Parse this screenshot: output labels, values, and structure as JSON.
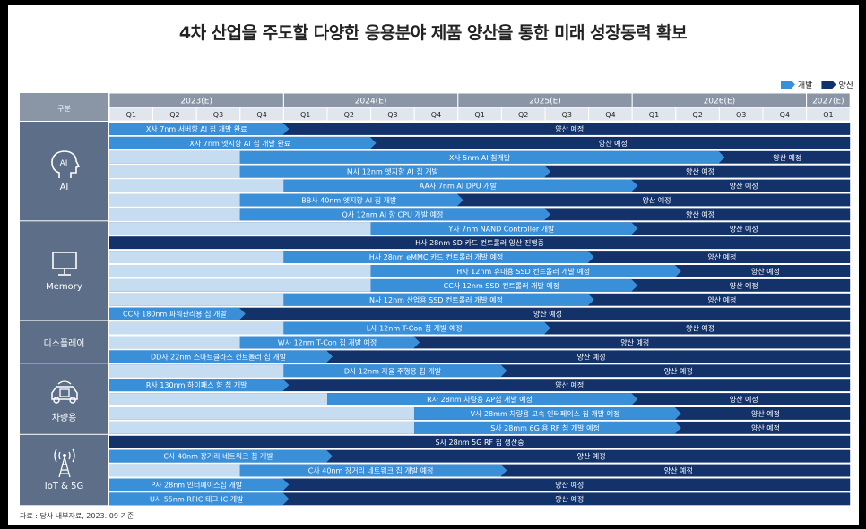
{
  "title": "4차 산업을 주도할 다양한 응용분야 제품 양산을 통한 미래 성장동력 확보",
  "legend": [
    {
      "label": "개발",
      "color": "#3a8fd9"
    },
    {
      "label": "양산",
      "color": "#13326a"
    }
  ],
  "source": "자료 : 당사 내부자료, 2023. 09 기준",
  "header": {
    "category_col": "구분",
    "years": [
      "2023(E)",
      "2024(E)",
      "2025(E)",
      "2026(E)",
      "2027(E)"
    ],
    "quarters": [
      "Q1",
      "Q2",
      "Q3",
      "Q4",
      "Q1",
      "Q2",
      "Q3",
      "Q4",
      "Q1",
      "Q2",
      "Q3",
      "Q4",
      "Q1",
      "Q2",
      "Q3",
      "Q4",
      "Q1"
    ]
  },
  "categories": [
    {
      "label": "AI",
      "icon": "ai-head-icon"
    },
    {
      "label": "Memory",
      "icon": "monitor-icon"
    },
    {
      "label": "디스플레이",
      "icon": ""
    },
    {
      "label": "차량용",
      "icon": "car-chip-icon"
    },
    {
      "label": "IoT & 5G",
      "icon": "antenna-icon"
    }
  ],
  "colors": {
    "header": "#8a96a6",
    "quarter_row": "#e1e5ec",
    "category": "#5d6f88",
    "dev": "#3a8fd9",
    "mass": "#13326a",
    "pre": "#c6dcf1"
  },
  "chart_data": {
    "type": "gantt",
    "periods": [
      "2023Q1",
      "2023Q2",
      "2023Q3",
      "2023Q4",
      "2024Q1",
      "2024Q2",
      "2024Q3",
      "2024Q4",
      "2025Q1",
      "2025Q2",
      "2025Q3",
      "2025Q4",
      "2026Q1",
      "2026Q2",
      "2026Q3",
      "2026Q4",
      "2027Q1"
    ],
    "rows": [
      {
        "category": "AI",
        "pre": 0,
        "dev_end": 4,
        "dev_label": "X사 7nm 서버향 AI 칩 개발 완료",
        "mass_label": "양산 예정"
      },
      {
        "category": "AI",
        "pre": 0,
        "dev_end": 6,
        "dev_label": "X사 7nm 엣지향 AI 칩 개발 완료",
        "mass_label": "양산 예정"
      },
      {
        "category": "AI",
        "pre": 3,
        "dev_end": 14,
        "dev_label": "X사 5nm AI 칩개발",
        "mass_label": "양산 예정"
      },
      {
        "category": "AI",
        "pre": 3,
        "dev_end": 10,
        "dev_label": "M사 12nm 엣지향 AI 칩 개발",
        "mass_label": "양산 예정"
      },
      {
        "category": "AI",
        "pre": 4,
        "dev_end": 12,
        "dev_label": "AA사 7nm AI DPU 개발",
        "mass_label": "양산 예정"
      },
      {
        "category": "AI",
        "pre": 3,
        "dev_end": 8,
        "dev_label": "BB사 40nm 엣지향 AI 칩 개발",
        "mass_label": "양산 예정"
      },
      {
        "category": "AI",
        "pre": 3,
        "dev_end": 10,
        "dev_label": "Q사 12nm AI 향 CPU 개발 예정",
        "mass_label": "양산 예정"
      },
      {
        "category": "Memory",
        "pre": 6,
        "dev_end": 12,
        "dev_label": "Y사 7nm NAND Controller 개발",
        "mass_label": "양산 예정"
      },
      {
        "category": "Memory",
        "pre": 0,
        "dev_end": 0,
        "dev_label": "",
        "mass_label": "H사 28nm SD 카드 컨트롤러 양산 진행중"
      },
      {
        "category": "Memory",
        "pre": 4,
        "dev_end": 11,
        "dev_label": "H사 28nm eMMC 카드 컨트롤러 개발 예정",
        "mass_label": "양산 예정"
      },
      {
        "category": "Memory",
        "pre": 6,
        "dev_end": 13,
        "dev_label": "H사 12nm 휴대용 SSD 컨트롤러 개발 예정",
        "mass_label": "양산 예정"
      },
      {
        "category": "Memory",
        "pre": 6,
        "dev_end": 12,
        "dev_label": "CC사 12nm SSD 컨트롤러 개발 예정",
        "mass_label": "양산 예정"
      },
      {
        "category": "Memory",
        "pre": 4,
        "dev_end": 11,
        "dev_label": "N사 12nm 산업용 SSD 컨트롤러 개발 예정",
        "mass_label": "양산 예정"
      },
      {
        "category": "Memory",
        "pre": 0,
        "dev_end": 3,
        "dev_label": "CC사 180nm 파워관리용 칩 개발",
        "mass_label": "양산 예정"
      },
      {
        "category": "디스플레이",
        "pre": 4,
        "dev_end": 10,
        "dev_label": "L사 12nm T-Con 칩 개발 예정",
        "mass_label": "양산 예정"
      },
      {
        "category": "디스플레이",
        "pre": 3,
        "dev_end": 7,
        "dev_label": "W사 12nm T-Con 칩 개발 예정",
        "mass_label": "양산 예정"
      },
      {
        "category": "디스플레이",
        "pre": 0,
        "dev_end": 5,
        "dev_label": "DD사 22nm 스마트클라스 컨트롤러 칩 개발",
        "mass_label": "양산 예정"
      },
      {
        "category": "차량용",
        "pre": 4,
        "dev_end": 9,
        "dev_label": "D사 12nm 자율 주행용 칩 개발",
        "mass_label": "양산 예정"
      },
      {
        "category": "차량용",
        "pre": 0,
        "dev_end": 4,
        "dev_label": "R사 130nm 하이패스 향 칩 개발",
        "mass_label": "양산 예정"
      },
      {
        "category": "차량용",
        "pre": 5,
        "dev_end": 12,
        "dev_label": "R사 28nm 차량용 AP칩 개발 예정",
        "mass_label": "양산 예정"
      },
      {
        "category": "차량용",
        "pre": 7,
        "dev_end": 13,
        "dev_label": "V사 28mm 차량용 고속 인터페이스 칩 개발 예정",
        "mass_label": "양산 예정"
      },
      {
        "category": "차량용",
        "pre": 7,
        "dev_end": 13,
        "dev_label": "S사 28mm 6G 용 RF 칩 개발 예정",
        "mass_label": "양산 예정"
      },
      {
        "category": "IoT & 5G",
        "pre": 0,
        "dev_end": 0,
        "dev_label": "",
        "mass_label": "S사 28nm 5G RF 칩 생산중"
      },
      {
        "category": "IoT & 5G",
        "pre": 0,
        "dev_end": 5,
        "dev_label": "C사 40nm 장거리 네트워크 칩 개발",
        "mass_label": "양산 예정"
      },
      {
        "category": "IoT & 5G",
        "pre": 3,
        "dev_end": 9,
        "dev_label": "C사 40nm 장거리 네트워크 칩 개발 예정",
        "mass_label": "양산 예정"
      },
      {
        "category": "IoT & 5G",
        "pre": 0,
        "dev_end": 4,
        "dev_label": "P사 28nm 인터페이스칩 개발",
        "mass_label": "양산 예정"
      },
      {
        "category": "IoT & 5G",
        "pre": 0,
        "dev_end": 4,
        "dev_label": "U사 55nm RFIC 태그 IC 개발",
        "mass_label": "양산 예정"
      }
    ]
  }
}
